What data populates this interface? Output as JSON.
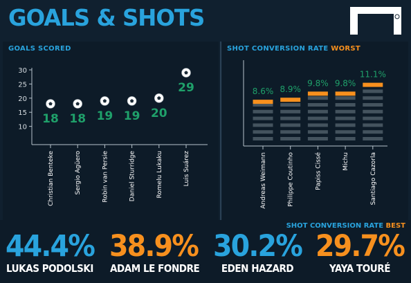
{
  "title": "GOALS & SHOTS",
  "goals_header": "GOALS SCORED",
  "conversion_header": {
    "prefix": "SHOT CONVERSION RATE",
    "accent": "WORST"
  },
  "best_header": {
    "prefix": "SHOT CONVERSION RATE",
    "accent": "BEST"
  },
  "icons": {
    "logo": "goal-logo-icon",
    "ball": "football-icon"
  },
  "colors": {
    "background": "#10202f",
    "panel": "#0d1b28",
    "blue": "#29a3dd",
    "orange": "#f7901e",
    "green": "#1fa06a",
    "bar_grey": "#44535e"
  },
  "chart_data": [
    {
      "type": "scatter",
      "title": "GOALS SCORED",
      "categories": [
        "Christian Benteke",
        "Sergio Agüero",
        "Robin van Persie",
        "Daniel Sturridge",
        "Romelu Lukaku",
        "Luis Suárez"
      ],
      "values": [
        18,
        18,
        19,
        19,
        20,
        29
      ],
      "data_labels": [
        "18",
        "18",
        "19",
        "19",
        "20",
        "29"
      ],
      "yticks": [
        "10",
        "15",
        "20",
        "25",
        "30"
      ],
      "ylim": [
        5,
        30
      ],
      "grid": false
    },
    {
      "type": "bar",
      "title": "SHOT CONVERSION RATE WORST",
      "categories": [
        "Andreas Weimann",
        "Philippe Coutinho",
        "Papiss Cissé",
        "Michu",
        "Santiago Cazorla"
      ],
      "values": [
        8.6,
        8.9,
        9.8,
        9.8,
        11.1
      ],
      "data_labels": [
        "8.6%",
        "8.9%",
        "9.8%",
        "9.8%",
        "11.1%"
      ],
      "unit": "%",
      "grid": false
    }
  ],
  "best": [
    {
      "pct": "44.4%",
      "name": "LUKAS PODOLSKI",
      "color": "#29a3dd"
    },
    {
      "pct": "38.9%",
      "name": "ADAM LE FONDRE",
      "color": "#f7901e"
    },
    {
      "pct": "30.2%",
      "name": "EDEN HAZARD",
      "color": "#29a3dd"
    },
    {
      "pct": "29.7%",
      "name": "YAYA TOURÉ",
      "color": "#f7901e"
    }
  ]
}
